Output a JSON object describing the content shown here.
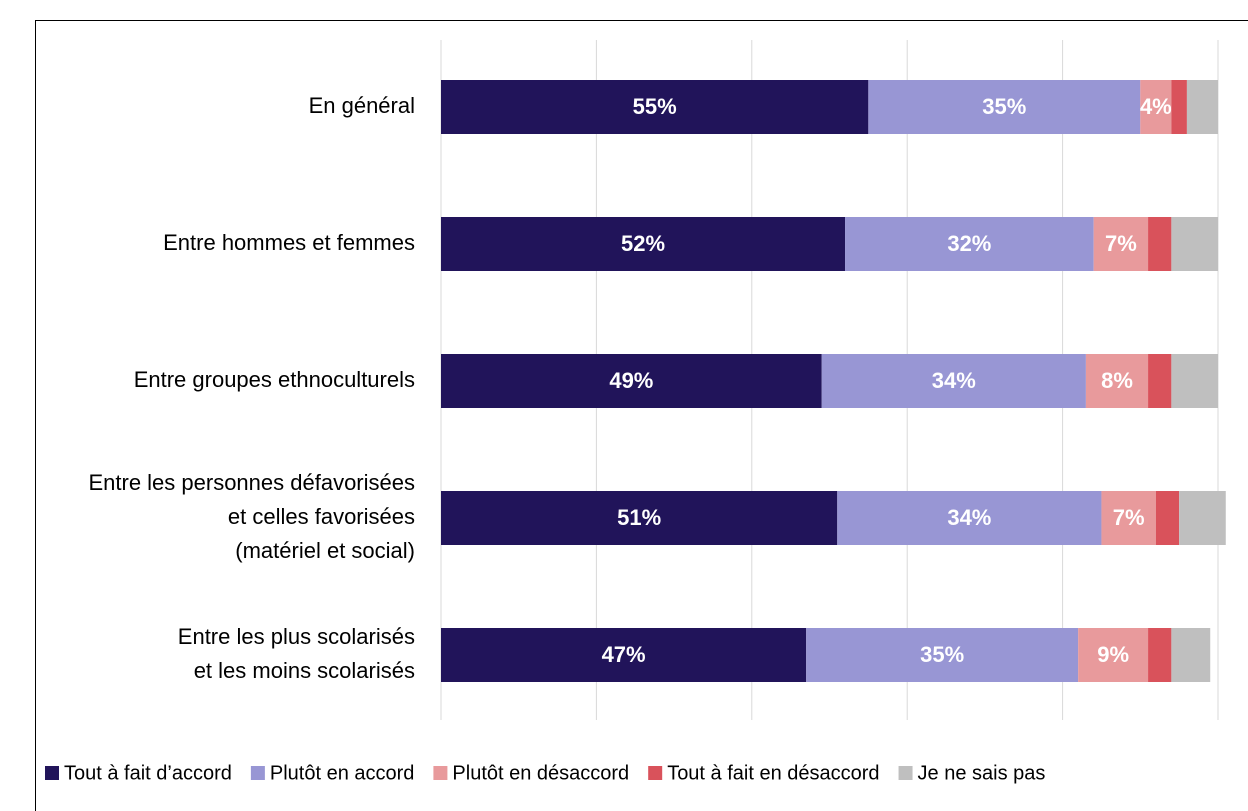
{
  "chart_data": {
    "type": "stacked-barh",
    "categories": [
      "En général",
      "Entre hommes et femmes",
      "Entre groupes ethnoculturels",
      "Entre les personnes défavorisées\net celles favorisées\n(matériel et social)",
      "Entre les plus scolarisés\net les moins scolarisés"
    ],
    "series": [
      {
        "name": "Tout à fait d’accord",
        "color": "#21145a",
        "values": [
          55,
          52,
          49,
          51,
          47
        ],
        "value_labels": [
          "55%",
          "52%",
          "49%",
          "51%",
          "47%"
        ]
      },
      {
        "name": "Plutôt en accord",
        "color": "#9896d4",
        "values": [
          35,
          32,
          34,
          34,
          35
        ],
        "value_labels": [
          "35%",
          "32%",
          "34%",
          "34%",
          "35%"
        ]
      },
      {
        "name": "Plutôt en désaccord",
        "color": "#e89a9c",
        "values": [
          4,
          7,
          8,
          7,
          9
        ],
        "value_labels": [
          "4%",
          "7%",
          "8%",
          "7%",
          "9%"
        ]
      },
      {
        "name": "Tout à fait en désaccord",
        "color": "#d9525b",
        "values": [
          2,
          3,
          3,
          3,
          3
        ]
      },
      {
        "name": "Je ne sais pas",
        "color": "#bfbfbf",
        "values": [
          4,
          6,
          6,
          6,
          5
        ]
      }
    ],
    "xlim": [
      0,
      100
    ],
    "xticks": [
      0,
      20,
      40,
      60,
      80,
      100
    ],
    "grid": true,
    "legend": "bottom"
  }
}
